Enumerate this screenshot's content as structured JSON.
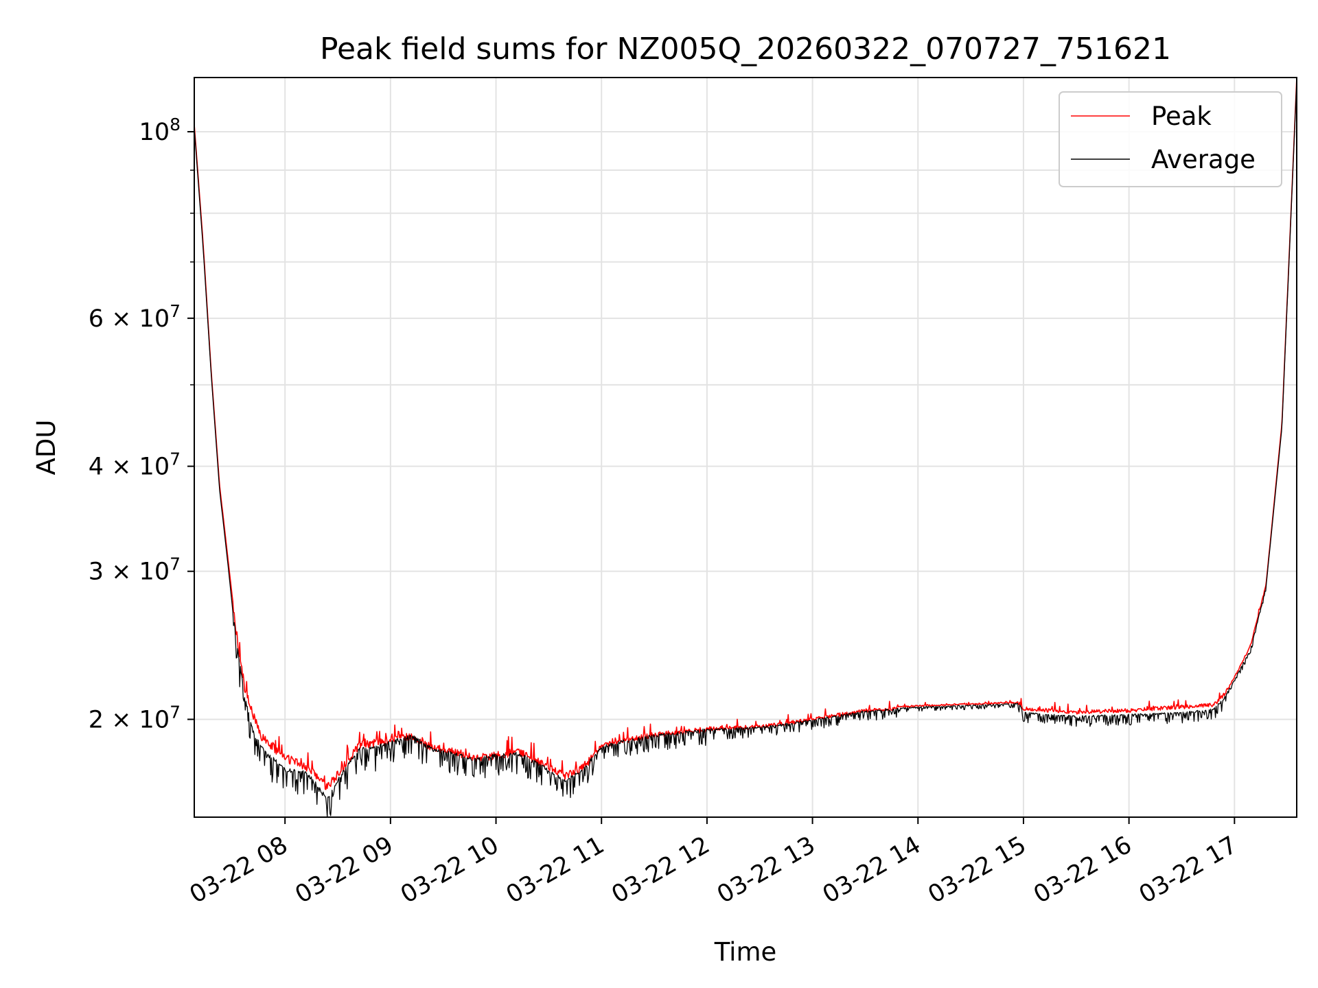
{
  "chart_data": {
    "type": "line",
    "title": "Peak field sums for NZ005Q_20260322_070727_751621",
    "xlabel": "Time",
    "ylabel": "ADU",
    "y_scale": "log",
    "ylim": [
      15300000,
      116000000
    ],
    "xlim_hours": [
      7.14,
      17.59
    ],
    "grid": true,
    "legend_position": "top-right",
    "x_ticks": [
      {
        "value": 8,
        "label": "03-22 08"
      },
      {
        "value": 9,
        "label": "03-22 09"
      },
      {
        "value": 10,
        "label": "03-22 10"
      },
      {
        "value": 11,
        "label": "03-22 11"
      },
      {
        "value": 12,
        "label": "03-22 12"
      },
      {
        "value": 13,
        "label": "03-22 13"
      },
      {
        "value": 14,
        "label": "03-22 14"
      },
      {
        "value": 15,
        "label": "03-22 15"
      },
      {
        "value": 16,
        "label": "03-22 16"
      },
      {
        "value": 17,
        "label": "03-22 17"
      }
    ],
    "y_major_ticks": [
      {
        "value": 20000000,
        "mantissa": "2",
        "exp": "7"
      },
      {
        "value": 30000000,
        "mantissa": "3",
        "exp": "7"
      },
      {
        "value": 40000000,
        "mantissa": "4",
        "exp": "7"
      },
      {
        "value": 60000000,
        "mantissa": "6",
        "exp": "7"
      },
      {
        "value": 100000000,
        "mantissa": "",
        "exp": "8"
      }
    ],
    "y_minor_ticks": [
      50000000,
      70000000,
      80000000,
      90000000
    ],
    "series": [
      {
        "name": "Peak",
        "color": "#ff0000",
        "x": [
          7.14,
          7.22,
          7.3,
          7.38,
          7.46,
          7.5,
          7.56,
          7.62,
          7.7,
          7.78,
          8.0,
          8.2,
          8.4,
          8.5,
          8.7,
          8.9,
          9.2,
          9.4,
          9.6,
          9.8,
          10.0,
          10.2,
          10.4,
          10.65,
          10.8,
          11.0,
          11.2,
          11.5,
          12.0,
          12.5,
          13.0,
          13.5,
          14.0,
          14.5,
          14.96,
          15.0,
          15.5,
          16.0,
          16.5,
          16.8,
          16.9,
          17.0,
          17.15,
          17.3,
          17.45,
          17.59
        ],
        "values": [
          102000000,
          75000000,
          52000000,
          38000000,
          31000000,
          28000000,
          24500000,
          22000000,
          20500000,
          19300000,
          18200000,
          17800000,
          16800000,
          17400000,
          18800000,
          19000000,
          19300000,
          18700000,
          18500000,
          18200000,
          18300000,
          18500000,
          18000000,
          17300000,
          17600000,
          18700000,
          19000000,
          19300000,
          19600000,
          19700000,
          20100000,
          20600000,
          20800000,
          20900000,
          21000000,
          20700000,
          20500000,
          20600000,
          20800000,
          20900000,
          21500000,
          22500000,
          24500000,
          29000000,
          45000000,
          116000000
        ]
      },
      {
        "name": "Average",
        "color": "#000000",
        "x": [
          7.14,
          7.22,
          7.3,
          7.38,
          7.46,
          7.5,
          7.56,
          7.62,
          7.7,
          7.78,
          8.0,
          8.2,
          8.4,
          8.5,
          8.7,
          8.9,
          9.2,
          9.4,
          9.6,
          9.8,
          10.0,
          10.2,
          10.4,
          10.65,
          10.8,
          11.0,
          11.2,
          11.5,
          12.0,
          12.5,
          13.0,
          13.5,
          14.0,
          14.5,
          14.96,
          15.0,
          15.5,
          16.0,
          16.5,
          16.8,
          16.9,
          17.0,
          17.15,
          17.3,
          17.45,
          17.59
        ],
        "values": [
          101000000,
          74000000,
          51500000,
          37500000,
          30500000,
          27300000,
          24000000,
          21300000,
          19400000,
          18600000,
          17500000,
          17400000,
          16200000,
          17000000,
          18500000,
          18700000,
          19200000,
          18500000,
          18300000,
          18000000,
          18200000,
          18300000,
          17800000,
          17000000,
          17400000,
          18600000,
          18900000,
          19200000,
          19500000,
          19600000,
          20000000,
          20500000,
          20700000,
          20800000,
          20900000,
          20400000,
          20200000,
          20300000,
          20400000,
          20600000,
          21200000,
          22300000,
          24200000,
          28800000,
          44500000,
          115000000
        ]
      }
    ]
  }
}
